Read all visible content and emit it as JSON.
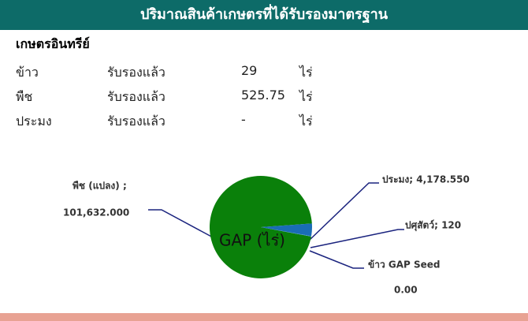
{
  "header": {
    "title": "ปริมาณสินค้าเกษตรที่ได้รับรองมาตรฐาน"
  },
  "section": {
    "title": "เกษตรอินทรีย์"
  },
  "table": {
    "rows": [
      [
        "ข้าว",
        "รับรองแล้ว",
        "29",
        "ไร่"
      ],
      [
        "พืช",
        "รับรองแล้ว",
        "525.75",
        "ไร่"
      ],
      [
        "ประมง",
        "รับรองแล้ว",
        "-",
        "ไร่"
      ]
    ]
  },
  "chart_data": {
    "type": "pie",
    "title": "GAP (ไร่)",
    "values": [
      101632.0,
      4178.55,
      120,
      0.0
    ],
    "value_labels": [
      [
        "พืช (แปลง) ;",
        "101,632.000"
      ],
      [
        "ประมง; 4,178.550"
      ],
      [
        "ปศุสัตว์; 120"
      ],
      [
        "ข้าว GAP Seed",
        "0.00"
      ]
    ],
    "colors": [
      "#0a800a",
      "#1a6db5",
      "#3a8fd0",
      "#9fc5e8"
    ]
  }
}
